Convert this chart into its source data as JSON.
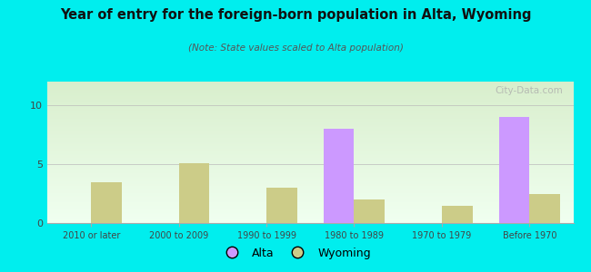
{
  "title": "Year of entry for the foreign-born population in Alta, Wyoming",
  "subtitle": "(Note: State values scaled to Alta population)",
  "categories": [
    "2010 or later",
    "2000 to 2009",
    "1990 to 1999",
    "1980 to 1989",
    "1970 to 1979",
    "Before 1970"
  ],
  "alta_values": [
    0,
    0,
    0,
    8.0,
    0,
    9.0
  ],
  "wyoming_values": [
    3.5,
    5.1,
    3.0,
    2.0,
    1.5,
    2.5
  ],
  "alta_color": "#cc99ff",
  "wyoming_color": "#cccc88",
  "background_outer": "#00eeee",
  "background_plot_top": "#f0fff0",
  "background_plot_bottom": "#d8eecc",
  "ylim": [
    0,
    12
  ],
  "yticks": [
    0,
    5,
    10
  ],
  "bar_width": 0.35,
  "legend_alta": "Alta",
  "legend_wyoming": "Wyoming",
  "watermark": "City-Data.com"
}
